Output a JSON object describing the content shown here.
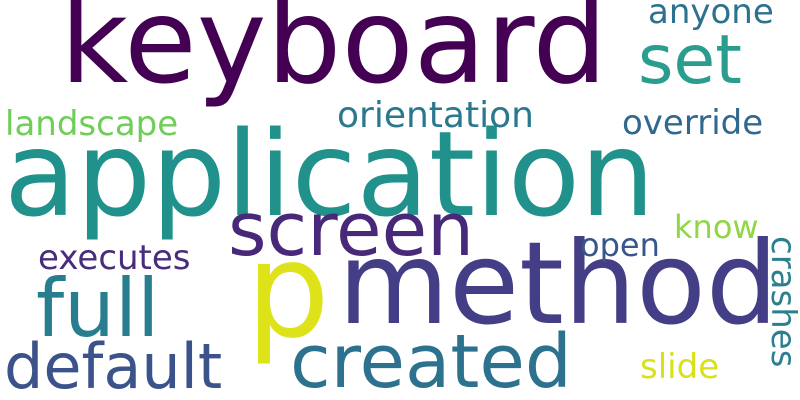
{
  "words": [
    {
      "text": "keyboard",
      "color": "#440154"
    },
    {
      "text": "application",
      "color": "#21918c"
    },
    {
      "text": "method",
      "color": "#433e85"
    },
    {
      "text": "p",
      "color": "#dde318"
    },
    {
      "text": "screen",
      "color": "#482878"
    },
    {
      "text": "set",
      "color": "#2a9d8f"
    },
    {
      "text": "created",
      "color": "#2c728e"
    },
    {
      "text": "full",
      "color": "#287d8e"
    },
    {
      "text": "default",
      "color": "#3b528b"
    },
    {
      "text": "orientation",
      "color": "#2a788e"
    },
    {
      "text": "landscape",
      "color": "#6ece58"
    },
    {
      "text": "anyone",
      "color": "#2c728e"
    },
    {
      "text": "override",
      "color": "#31688e"
    },
    {
      "text": "executes",
      "color": "#472d7b"
    },
    {
      "text": "open",
      "color": "#39568c"
    },
    {
      "text": "know",
      "color": "#8fd744"
    },
    {
      "text": "crashes",
      "color": "#2c7f8e"
    },
    {
      "text": "slide",
      "color": "#d8e219"
    }
  ]
}
